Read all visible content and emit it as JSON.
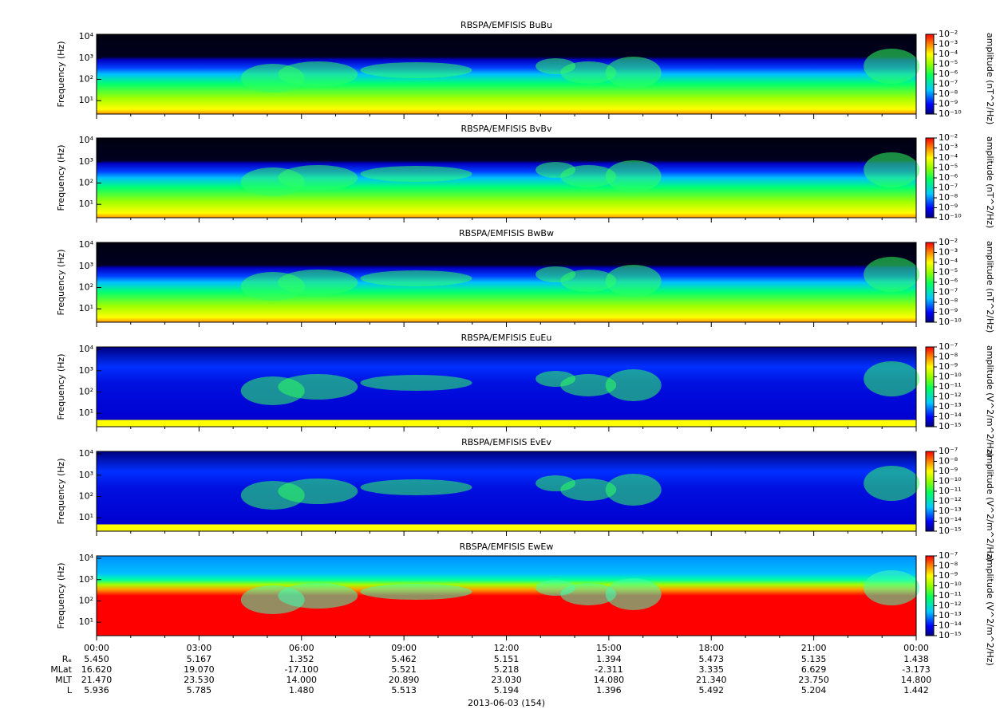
{
  "chart_data": [
    {
      "type": "spectrogram",
      "title": "RBSPA/EMFISIS  BuBu",
      "ylabel": "Frequency (Hz)",
      "log_y": true,
      "ylim": [
        2.35,
        13000
      ],
      "yticks": [
        {
          "value": 10,
          "label": "10¹"
        },
        {
          "value": 100,
          "label": "10²"
        },
        {
          "value": 1000,
          "label": "10³"
        },
        {
          "value": 10000,
          "label": "10⁴"
        }
      ],
      "colorbar": {
        "label": "amplitude (nT^2/Hz)",
        "lim": [
          1e-10,
          0.01
        ],
        "ticks": [
          {
            "value": 0.01,
            "label": "10⁻²"
          },
          {
            "value": 0.001,
            "label": "10⁻³"
          },
          {
            "value": 0.0001,
            "label": "10⁻⁴"
          },
          {
            "value": 1e-05,
            "label": "10⁻⁵"
          },
          {
            "value": 1e-06,
            "label": "10⁻⁶"
          },
          {
            "value": 1e-07,
            "label": "10⁻⁷"
          },
          {
            "value": 1e-08,
            "label": "10⁻⁸"
          },
          {
            "value": 1e-09,
            "label": "10⁻⁹"
          },
          {
            "value": 1e-10,
            "label": "10⁻¹⁰"
          }
        ]
      }
    },
    {
      "type": "spectrogram",
      "title": "RBSPA/EMFISIS  BvBv",
      "ylabel": "Frequency (Hz)",
      "log_y": true,
      "ylim": [
        2.35,
        13000
      ],
      "yticks": [
        {
          "value": 10,
          "label": "10¹"
        },
        {
          "value": 100,
          "label": "10²"
        },
        {
          "value": 1000,
          "label": "10³"
        },
        {
          "value": 10000,
          "label": "10⁴"
        }
      ],
      "colorbar": {
        "label": "amplitude (nT^2/Hz)",
        "lim": [
          1e-10,
          0.01
        ],
        "ticks": [
          {
            "value": 0.01,
            "label": "10⁻²"
          },
          {
            "value": 0.001,
            "label": "10⁻³"
          },
          {
            "value": 0.0001,
            "label": "10⁻⁴"
          },
          {
            "value": 1e-05,
            "label": "10⁻⁵"
          },
          {
            "value": 1e-06,
            "label": "10⁻⁶"
          },
          {
            "value": 1e-07,
            "label": "10⁻⁷"
          },
          {
            "value": 1e-08,
            "label": "10⁻⁸"
          },
          {
            "value": 1e-09,
            "label": "10⁻⁹"
          },
          {
            "value": 1e-10,
            "label": "10⁻¹⁰"
          }
        ]
      }
    },
    {
      "type": "spectrogram",
      "title": "RBSPA/EMFISIS  BwBw",
      "ylabel": "Frequency (Hz)",
      "log_y": true,
      "ylim": [
        2.35,
        13000
      ],
      "yticks": [
        {
          "value": 10,
          "label": "10¹"
        },
        {
          "value": 100,
          "label": "10²"
        },
        {
          "value": 1000,
          "label": "10³"
        },
        {
          "value": 10000,
          "label": "10⁴"
        }
      ],
      "colorbar": {
        "label": "amplitude (nT^2/Hz)",
        "lim": [
          1e-10,
          0.01
        ],
        "ticks": [
          {
            "value": 0.01,
            "label": "10⁻²"
          },
          {
            "value": 0.001,
            "label": "10⁻³"
          },
          {
            "value": 0.0001,
            "label": "10⁻⁴"
          },
          {
            "value": 1e-05,
            "label": "10⁻⁵"
          },
          {
            "value": 1e-06,
            "label": "10⁻⁶"
          },
          {
            "value": 1e-07,
            "label": "10⁻⁷"
          },
          {
            "value": 1e-08,
            "label": "10⁻⁸"
          },
          {
            "value": 1e-09,
            "label": "10⁻⁹"
          },
          {
            "value": 1e-10,
            "label": "10⁻¹⁰"
          }
        ]
      }
    },
    {
      "type": "spectrogram",
      "title": "RBSPA/EMFISIS  EuEu",
      "ylabel": "Frequency (Hz)",
      "log_y": true,
      "ylim": [
        2.35,
        13000
      ],
      "yticks": [
        {
          "value": 10,
          "label": "10¹"
        },
        {
          "value": 100,
          "label": "10²"
        },
        {
          "value": 1000,
          "label": "10³"
        },
        {
          "value": 10000,
          "label": "10⁴"
        }
      ],
      "colorbar": {
        "label": "amplitude (V^2/m^2/Hz)",
        "lim": [
          1e-15,
          1e-07
        ],
        "ticks": [
          {
            "value": 1e-07,
            "label": "10⁻⁷"
          },
          {
            "value": 1e-08,
            "label": "10⁻⁸"
          },
          {
            "value": 1e-09,
            "label": "10⁻⁹"
          },
          {
            "value": 1e-10,
            "label": "10⁻¹⁰"
          },
          {
            "value": 1e-11,
            "label": "10⁻¹¹"
          },
          {
            "value": 1e-12,
            "label": "10⁻¹²"
          },
          {
            "value": 1e-13,
            "label": "10⁻¹³"
          },
          {
            "value": 1e-14,
            "label": "10⁻¹⁴"
          },
          {
            "value": 1e-15,
            "label": "10⁻¹⁵"
          }
        ]
      }
    },
    {
      "type": "spectrogram",
      "title": "RBSPA/EMFISIS  EvEv",
      "ylabel": "Frequency (Hz)",
      "log_y": true,
      "ylim": [
        2.35,
        13000
      ],
      "yticks": [
        {
          "value": 10,
          "label": "10¹"
        },
        {
          "value": 100,
          "label": "10²"
        },
        {
          "value": 1000,
          "label": "10³"
        },
        {
          "value": 10000,
          "label": "10⁴"
        }
      ],
      "colorbar": {
        "label": "amplitude (V^2/m^2/Hz)",
        "lim": [
          1e-15,
          1e-07
        ],
        "ticks": [
          {
            "value": 1e-07,
            "label": "10⁻⁷"
          },
          {
            "value": 1e-08,
            "label": "10⁻⁸"
          },
          {
            "value": 1e-09,
            "label": "10⁻⁹"
          },
          {
            "value": 1e-10,
            "label": "10⁻¹⁰"
          },
          {
            "value": 1e-11,
            "label": "10⁻¹¹"
          },
          {
            "value": 1e-12,
            "label": "10⁻¹²"
          },
          {
            "value": 1e-13,
            "label": "10⁻¹³"
          },
          {
            "value": 1e-14,
            "label": "10⁻¹⁴"
          },
          {
            "value": 1e-15,
            "label": "10⁻¹⁵"
          }
        ]
      }
    },
    {
      "type": "spectrogram",
      "title": "RBSPA/EMFISIS  EwEw",
      "ylabel": "Frequency (Hz)",
      "log_y": true,
      "ylim": [
        2.35,
        13000
      ],
      "yticks": [
        {
          "value": 10,
          "label": "10¹"
        },
        {
          "value": 100,
          "label": "10²"
        },
        {
          "value": 1000,
          "label": "10³"
        },
        {
          "value": 10000,
          "label": "10⁴"
        }
      ],
      "colorbar": {
        "label": "amplitude (V^2/m^2/Hz)",
        "lim": [
          1e-15,
          1e-07
        ],
        "ticks": [
          {
            "value": 1e-07,
            "label": "10⁻⁷"
          },
          {
            "value": 1e-08,
            "label": "10⁻⁸"
          },
          {
            "value": 1e-09,
            "label": "10⁻⁹"
          },
          {
            "value": 1e-10,
            "label": "10⁻¹⁰"
          },
          {
            "value": 1e-11,
            "label": "10⁻¹¹"
          },
          {
            "value": 1e-12,
            "label": "10⁻¹²"
          },
          {
            "value": 1e-13,
            "label": "10⁻¹³"
          },
          {
            "value": 1e-14,
            "label": "10⁻¹⁴"
          },
          {
            "value": 1e-15,
            "label": "10⁻¹⁵"
          }
        ]
      }
    }
  ],
  "x_axis": {
    "ticks": [
      "00:00",
      "03:00",
      "06:00",
      "09:00",
      "12:00",
      "15:00",
      "18:00",
      "21:00",
      "00:00"
    ],
    "rows": [
      {
        "label": "Rₑ",
        "values": [
          "5.450",
          "5.167",
          "1.352",
          "5.462",
          "5.151",
          "1.394",
          "5.473",
          "5.135",
          "1.438"
        ]
      },
      {
        "label": "MLat",
        "values": [
          "16.620",
          "19.070",
          "-17.100",
          "5.521",
          "5.218",
          "-2.311",
          "3.335",
          "6.629",
          "-3.173"
        ]
      },
      {
        "label": "MLT",
        "values": [
          "21.470",
          "23.530",
          "14.000",
          "20.890",
          "23.030",
          "14.080",
          "21.340",
          "23.750",
          "14.800"
        ]
      },
      {
        "label": "L",
        "values": [
          "5.936",
          "5.785",
          "1.480",
          "5.513",
          "5.194",
          "1.396",
          "5.492",
          "5.204",
          "1.442"
        ]
      }
    ],
    "date": "2013-06-03 (154)"
  }
}
